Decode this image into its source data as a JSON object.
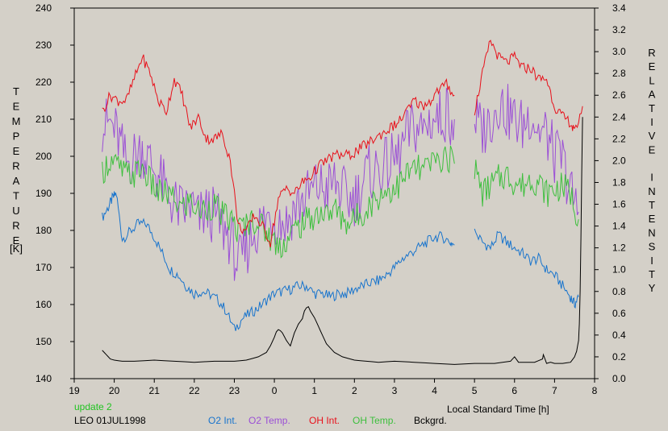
{
  "chart_data": {
    "type": "line",
    "xlabel": "Local Standard Time [h]",
    "y_left_label": "TEMPERATURE",
    "y_left_unit": "[K]",
    "y_right_label": "RELATIVE INTENSITY",
    "x_ticks": [
      "19",
      "20",
      "21",
      "22",
      "23",
      "0",
      "1",
      "2",
      "3",
      "4",
      "5",
      "6",
      "7",
      "8"
    ],
    "y_left_ticks": [
      "140",
      "150",
      "160",
      "170",
      "180",
      "190",
      "200",
      "210",
      "220",
      "230",
      "240"
    ],
    "y_right_ticks": [
      "0.0",
      "0.2",
      "0.4",
      "0.6",
      "0.8",
      "1.0",
      "1.2",
      "1.4",
      "1.6",
      "1.8",
      "2.0",
      "2.2",
      "2.4",
      "2.6",
      "2.8",
      "3.0",
      "3.2",
      "3.4"
    ],
    "xlim": [
      19,
      32
    ],
    "ylim_left": [
      140,
      240
    ],
    "ylim_right": [
      0,
      3.4
    ],
    "grid": false,
    "note_label": "update 2",
    "station_label": "LEO 01JUL1998",
    "series": [
      {
        "name": "O2 Int.",
        "axis": "right",
        "color": "#1874cd",
        "x": [
          19.7,
          19.85,
          19.95,
          20.05,
          20.2,
          20.4,
          20.6,
          20.8,
          21,
          21.2,
          21.4,
          21.6,
          21.8,
          22,
          22.2,
          22.4,
          22.6,
          22.8,
          23,
          23.2,
          23.4,
          23.6,
          23.8,
          24,
          24.2,
          24.4,
          24.6,
          24.8,
          25,
          25.2,
          25.4,
          25.6,
          25.8,
          26,
          26.2,
          26.4,
          26.6,
          26.8,
          27,
          27.2,
          27.4,
          27.6,
          27.8,
          28,
          28.2,
          28.4,
          28.5
        ],
        "y": [
          1.48,
          1.57,
          1.65,
          1.7,
          1.28,
          1.35,
          1.42,
          1.42,
          1.3,
          1.15,
          1.0,
          0.95,
          0.85,
          0.78,
          0.8,
          0.77,
          0.72,
          0.62,
          0.45,
          0.55,
          0.6,
          0.65,
          0.72,
          0.78,
          0.8,
          0.82,
          0.85,
          0.85,
          0.78,
          0.78,
          0.75,
          0.78,
          0.78,
          0.82,
          0.85,
          0.88,
          0.9,
          0.95,
          1.02,
          1.1,
          1.15,
          1.2,
          1.25,
          1.3,
          1.3,
          1.25,
          1.23
        ]
      },
      {
        "name": "O2 Int.",
        "axis": "right",
        "color": "#1874cd",
        "x": [
          29,
          29.2,
          29.4,
          29.6,
          29.8,
          30,
          30.2,
          30.4,
          30.6,
          30.8,
          31,
          31.2,
          31.4,
          31.5,
          31.6
        ],
        "y": [
          1.35,
          1.25,
          1.2,
          1.32,
          1.25,
          1.2,
          1.15,
          1.08,
          1.1,
          1.0,
          0.95,
          0.85,
          0.75,
          0.68,
          0.75
        ]
      },
      {
        "name": "O2 Temp.",
        "axis": "left",
        "color": "#9b4fd6",
        "x": [
          19.7,
          19.9,
          20.1,
          20.3,
          20.5,
          20.7,
          20.9,
          21.1,
          21.3,
          21.5,
          21.7,
          21.9,
          22.1,
          22.3,
          22.5,
          22.7,
          22.9,
          23.1,
          23.3,
          23.5,
          23.7,
          23.9,
          24.1,
          24.3,
          24.5,
          24.7,
          24.9,
          25.1,
          25.3,
          25.5,
          25.7,
          25.9,
          26.1,
          26.3,
          26.5,
          26.7,
          26.9,
          27.1,
          27.3,
          27.5,
          27.7,
          27.9,
          28.1,
          28.3,
          28.5
        ],
        "y": [
          208,
          209,
          205,
          198,
          200,
          202,
          198,
          195,
          190,
          187,
          185,
          187,
          183,
          185,
          184,
          181,
          178,
          170,
          175,
          180,
          182,
          184,
          183,
          182,
          186,
          188,
          190,
          192,
          191,
          193,
          190,
          188,
          190,
          195,
          196,
          197,
          198,
          200,
          205,
          208,
          207,
          210,
          210,
          212,
          210
        ]
      },
      {
        "name": "O2 Temp.",
        "axis": "left",
        "color": "#9b4fd6",
        "x": [
          29,
          29.2,
          29.4,
          29.6,
          29.8,
          30,
          30.2,
          30.4,
          30.6,
          30.8,
          31,
          31.2,
          31.4,
          31.6
        ],
        "y": [
          210,
          207,
          210,
          215,
          212,
          210,
          208,
          212,
          207,
          206,
          200,
          199,
          190,
          185
        ]
      },
      {
        "name": "OH Int.",
        "axis": "right",
        "color": "#e8101a",
        "x": [
          19.7,
          19.9,
          20.1,
          20.3,
          20.5,
          20.7,
          20.9,
          21.1,
          21.3,
          21.5,
          21.7,
          21.9,
          22.1,
          22.3,
          22.5,
          22.7,
          22.9,
          23.1,
          23.3,
          23.5,
          23.7,
          23.9,
          24.1,
          24.3,
          24.5,
          24.7,
          24.9,
          25.1,
          25.3,
          25.5,
          25.7,
          25.9,
          26.1,
          26.3,
          26.5,
          26.7,
          26.9,
          27.1,
          27.3,
          27.5,
          27.7,
          27.9,
          28.1,
          28.3,
          28.5
        ],
        "y": [
          2.45,
          2.6,
          2.55,
          2.55,
          2.75,
          2.95,
          2.8,
          2.55,
          2.45,
          2.75,
          2.6,
          2.3,
          2.4,
          2.2,
          2.2,
          2.25,
          2.0,
          1.4,
          1.35,
          1.5,
          1.4,
          1.25,
          1.65,
          1.75,
          1.7,
          1.8,
          1.85,
          1.95,
          2.0,
          2.05,
          2.05,
          2.05,
          2.1,
          2.15,
          2.2,
          2.25,
          2.3,
          2.35,
          2.45,
          2.55,
          2.5,
          2.55,
          2.65,
          2.7,
          2.6
        ]
      },
      {
        "name": "OH Int.",
        "axis": "right",
        "color": "#e8101a",
        "x": [
          29,
          29.2,
          29.4,
          29.6,
          29.8,
          30,
          30.2,
          30.4,
          30.6,
          30.8,
          31,
          31.2,
          31.4,
          31.5,
          31.7
        ],
        "y": [
          2.45,
          2.8,
          3.1,
          2.95,
          2.9,
          2.95,
          2.85,
          2.85,
          2.75,
          2.75,
          2.5,
          2.4,
          2.35,
          2.25,
          2.5
        ]
      },
      {
        "name": "OH Temp.",
        "axis": "left",
        "color": "#3dbf3d",
        "x": [
          19.7,
          19.9,
          20.1,
          20.3,
          20.5,
          20.7,
          20.9,
          21.1,
          21.3,
          21.5,
          21.7,
          21.9,
          22.1,
          22.3,
          22.5,
          22.7,
          22.9,
          23.1,
          23.3,
          23.5,
          23.7,
          23.9,
          24.1,
          24.3,
          24.5,
          24.7,
          24.9,
          25.1,
          25.3,
          25.5,
          25.7,
          25.9,
          26.1,
          26.3,
          26.5,
          26.7,
          26.9,
          27.1,
          27.3,
          27.5,
          27.7,
          27.9,
          28.1,
          28.3,
          28.5
        ],
        "y": [
          196,
          199,
          197,
          195,
          195,
          197,
          193,
          190,
          190,
          188,
          186,
          188,
          185,
          186,
          187,
          184,
          183,
          180,
          182,
          183,
          181,
          178,
          176,
          177,
          180,
          182,
          183,
          185,
          184,
          186,
          183,
          182,
          184,
          186,
          188,
          190,
          191,
          192,
          195,
          197,
          196,
          198,
          199,
          200,
          198
        ]
      },
      {
        "name": "OH Temp.",
        "axis": "left",
        "color": "#3dbf3d",
        "x": [
          29,
          29.2,
          29.4,
          29.6,
          29.8,
          30,
          30.2,
          30.4,
          30.6,
          30.8,
          31,
          31.2,
          31.4,
          31.6
        ],
        "y": [
          197,
          190,
          192,
          194,
          195,
          193,
          192,
          194,
          193,
          190,
          191,
          192,
          190,
          183
        ]
      },
      {
        "name": "Bckgrd.",
        "axis": "right",
        "color": "#000000",
        "x": [
          19.7,
          19.8,
          19.9,
          20,
          20.2,
          20.5,
          21,
          21.5,
          22,
          22.5,
          23,
          23.3,
          23.6,
          23.8,
          23.9,
          24,
          24.05,
          24.1,
          24.15,
          24.2,
          24.3,
          24.4,
          24.5,
          24.6,
          24.7,
          24.75,
          24.8,
          24.85,
          24.9,
          25,
          25.1,
          25.2,
          25.3,
          25.5,
          25.7,
          26,
          26.3,
          26.6,
          27,
          27.5,
          28,
          28.5,
          29,
          29.5,
          29.9,
          30,
          30.1,
          30.5,
          30.7,
          30.72,
          30.8,
          30.9,
          31,
          31.2,
          31.4,
          31.5,
          31.55,
          31.6,
          31.62,
          31.64,
          31.66,
          31.68,
          31.7
        ],
        "y": [
          0.26,
          0.22,
          0.18,
          0.17,
          0.16,
          0.16,
          0.17,
          0.16,
          0.15,
          0.16,
          0.16,
          0.17,
          0.2,
          0.24,
          0.3,
          0.38,
          0.43,
          0.45,
          0.44,
          0.42,
          0.35,
          0.3,
          0.42,
          0.5,
          0.55,
          0.62,
          0.65,
          0.66,
          0.62,
          0.56,
          0.48,
          0.4,
          0.32,
          0.24,
          0.2,
          0.17,
          0.16,
          0.15,
          0.16,
          0.15,
          0.14,
          0.13,
          0.14,
          0.14,
          0.16,
          0.2,
          0.15,
          0.15,
          0.18,
          0.22,
          0.14,
          0.15,
          0.14,
          0.14,
          0.15,
          0.2,
          0.25,
          0.35,
          0.5,
          0.8,
          1.3,
          1.9,
          2.4
        ]
      }
    ]
  }
}
